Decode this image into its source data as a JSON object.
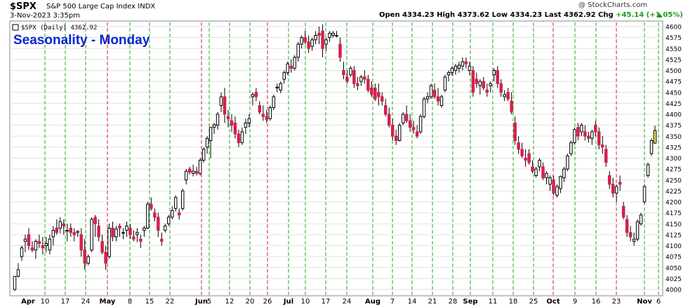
{
  "header": {
    "symbol": "$SPX",
    "description": "S&P 500 Large Cap Index INDX",
    "date": "3-Nov-2023 3:35pm",
    "watermark": "@ StockCharts.com",
    "quote": {
      "open_label": "Open",
      "open": "4334.23",
      "high_label": "High",
      "high": "4373.62",
      "low_label": "Low",
      "low": "4334.23",
      "last_label": "Last",
      "last": "4362.92",
      "chg_label": "Chg",
      "chg": "+45.14 (+1.05%)"
    }
  },
  "chart_data": {
    "type": "candlestick",
    "title": "Seasonality - Monday",
    "legend": "$SPX (Daily) 4362.92",
    "ylim": [
      3990,
      4615
    ],
    "y_ticks": [
      4000,
      4025,
      4050,
      4075,
      4100,
      4125,
      4150,
      4175,
      4200,
      4225,
      4250,
      4275,
      4300,
      4325,
      4350,
      4375,
      4400,
      4425,
      4450,
      4475,
      4500,
      4525,
      4550,
      4575,
      4600
    ],
    "x_ticks": [
      "Apr",
      "10",
      "17",
      "24",
      "May",
      "8",
      "15",
      "22",
      "Jun",
      "5",
      "12",
      "20",
      "26",
      "Jul",
      "10",
      "17",
      "24",
      "Aug",
      "7",
      "14",
      "21",
      "28",
      "Sep",
      "11",
      "18",
      "25",
      "Oct",
      "9",
      "16",
      "23",
      "Nov",
      "6"
    ],
    "month_ticks": [
      "Apr",
      "May",
      "Jun",
      "Jul",
      "Aug",
      "Sep",
      "Oct",
      "Nov"
    ],
    "monday_lines": [
      {
        "label": "10",
        "color": "green"
      },
      {
        "label": "17",
        "color": "green"
      },
      {
        "label": "24",
        "color": "green"
      },
      {
        "label": "May",
        "color": "red"
      },
      {
        "label": "8",
        "color": "green"
      },
      {
        "label": "15",
        "color": "green"
      },
      {
        "label": "22",
        "color": "green"
      },
      {
        "label": "Jun",
        "color": "red"
      },
      {
        "label": "5",
        "color": "green"
      },
      {
        "label": "12",
        "color": "green"
      },
      {
        "label": "20",
        "color": "green"
      },
      {
        "label": "26",
        "color": "red"
      },
      {
        "label": "Jul",
        "color": "green"
      },
      {
        "label": "10",
        "color": "green"
      },
      {
        "label": "17",
        "color": "green"
      },
      {
        "label": "24",
        "color": "green"
      },
      {
        "label": "Aug",
        "color": "green"
      },
      {
        "label": "7",
        "color": "green"
      },
      {
        "label": "14",
        "color": "green"
      },
      {
        "label": "21",
        "color": "green"
      },
      {
        "label": "28",
        "color": "green"
      },
      {
        "label": "Sep",
        "color": "green"
      },
      {
        "label": "11",
        "color": "green"
      },
      {
        "label": "18",
        "color": "green"
      },
      {
        "label": "25",
        "color": "green"
      },
      {
        "label": "Oct",
        "color": "red"
      },
      {
        "label": "9",
        "color": "green"
      },
      {
        "label": "16",
        "color": "green"
      },
      {
        "label": "23",
        "color": "red"
      },
      {
        "label": "Nov",
        "color": "green"
      },
      {
        "label": "6",
        "color": "green"
      }
    ],
    "colors": {
      "up": "#ffffff",
      "down": "#d6204b",
      "flat": "#000000",
      "last": "#f4ee4f",
      "monday_up": "#22aa22",
      "monday_down": "#cc2222",
      "title": "#0b24d6"
    },
    "ohlc": [
      [
        4000,
        4030,
        3997,
        4030
      ],
      [
        4030,
        4060,
        4028,
        4045
      ],
      [
        4075,
        4100,
        4065,
        4095
      ],
      [
        4110,
        4125,
        4085,
        4115
      ],
      [
        4125,
        4140,
        4090,
        4100
      ],
      [
        4095,
        4110,
        4085,
        4090
      ],
      [
        4090,
        4115,
        4070,
        4110
      ],
      [
        4110,
        4125,
        4095,
        4105
      ],
      [
        4100,
        4120,
        4080,
        4095
      ],
      [
        4100,
        4120,
        4085,
        4105
      ],
      [
        4090,
        4125,
        4080,
        4115
      ],
      [
        4120,
        4145,
        4100,
        4135
      ],
      [
        4140,
        4160,
        4125,
        4130
      ],
      [
        4140,
        4165,
        4128,
        4155
      ],
      [
        4150,
        4160,
        4125,
        4145
      ],
      [
        4135,
        4150,
        4110,
        4135
      ],
      [
        4140,
        4150,
        4120,
        4130
      ],
      [
        4130,
        4140,
        4110,
        4125
      ],
      [
        4130,
        4135,
        4120,
        4133
      ],
      [
        4125,
        4140,
        4075,
        4090
      ],
      [
        4090,
        4115,
        4045,
        4060
      ],
      [
        4060,
        4080,
        4055,
        4075
      ],
      [
        4090,
        4165,
        4085,
        4160
      ],
      [
        4165,
        4170,
        4120,
        4150
      ],
      [
        4145,
        4160,
        4110,
        4120
      ],
      [
        4110,
        4125,
        4080,
        4085
      ],
      [
        4085,
        4100,
        4045,
        4060
      ],
      [
        4075,
        4150,
        4070,
        4140
      ],
      [
        4140,
        4155,
        4110,
        4120
      ],
      [
        4120,
        4145,
        4110,
        4138
      ],
      [
        4145,
        4150,
        4120,
        4140
      ],
      [
        4130,
        4140,
        4115,
        4130
      ],
      [
        4135,
        4155,
        4120,
        4145
      ],
      [
        4140,
        4150,
        4115,
        4125
      ],
      [
        4120,
        4135,
        4110,
        4115
      ],
      [
        4125,
        4140,
        4108,
        4130
      ],
      [
        4115,
        4125,
        4095,
        4110
      ],
      [
        4135,
        4145,
        4120,
        4140
      ],
      [
        4140,
        4200,
        4138,
        4195
      ],
      [
        4195,
        4210,
        4180,
        4185
      ],
      [
        4175,
        4185,
        4155,
        4165
      ],
      [
        4165,
        4175,
        4120,
        4135
      ],
      [
        4115,
        4130,
        4100,
        4110
      ],
      [
        4135,
        4150,
        4130,
        4145
      ],
      [
        4150,
        4170,
        4145,
        4165
      ],
      [
        4165,
        4190,
        4160,
        4180
      ],
      [
        4185,
        4215,
        4178,
        4210
      ],
      [
        4175,
        4185,
        4160,
        4170
      ],
      [
        4185,
        4230,
        4180,
        4225
      ],
      [
        4250,
        4275,
        4240,
        4270
      ],
      [
        4275,
        4280,
        4262,
        4268
      ],
      [
        4265,
        4285,
        4258,
        4270
      ],
      [
        4270,
        4280,
        4260,
        4265
      ],
      [
        4265,
        4300,
        4260,
        4295
      ],
      [
        4295,
        4325,
        4290,
        4320
      ],
      [
        4325,
        4350,
        4310,
        4345
      ],
      [
        4340,
        4365,
        4300,
        4370
      ],
      [
        4370,
        4380,
        4355,
        4376
      ],
      [
        4375,
        4405,
        4365,
        4400
      ],
      [
        4420,
        4450,
        4405,
        4440
      ],
      [
        4440,
        4460,
        4380,
        4400
      ],
      [
        4395,
        4410,
        4370,
        4390
      ],
      [
        4385,
        4400,
        4360,
        4375
      ],
      [
        4380,
        4395,
        4345,
        4355
      ],
      [
        4355,
        4365,
        4325,
        4335
      ],
      [
        4335,
        4370,
        4330,
        4360
      ],
      [
        4370,
        4390,
        4355,
        4380
      ],
      [
        4380,
        4400,
        4370,
        4390
      ],
      [
        4440,
        4450,
        4420,
        4445
      ],
      [
        4450,
        4460,
        4430,
        4440
      ],
      [
        4420,
        4430,
        4400,
        4405
      ],
      [
        4400,
        4420,
        4385,
        4395
      ],
      [
        4395,
        4410,
        4380,
        4388
      ],
      [
        4390,
        4420,
        4385,
        4415
      ],
      [
        4415,
        4445,
        4410,
        4440
      ],
      [
        4460,
        4470,
        4450,
        4462
      ],
      [
        4455,
        4475,
        4448,
        4470
      ],
      [
        4480,
        4500,
        4470,
        4495
      ],
      [
        4495,
        4520,
        4490,
        4515
      ],
      [
        4510,
        4525,
        4495,
        4505
      ],
      [
        4505,
        4535,
        4500,
        4530
      ],
      [
        4530,
        4565,
        4520,
        4560
      ],
      [
        4560,
        4580,
        4550,
        4575
      ],
      [
        4575,
        4590,
        4560,
        4565
      ],
      [
        4565,
        4580,
        4540,
        4550
      ],
      [
        4555,
        4575,
        4545,
        4570
      ],
      [
        4570,
        4590,
        4560,
        4580
      ],
      [
        4585,
        4600,
        4560,
        4580
      ],
      [
        4590,
        4605,
        4530,
        4550
      ],
      [
        4560,
        4575,
        4545,
        4570
      ],
      [
        4575,
        4590,
        4565,
        4585
      ],
      [
        4580,
        4590,
        4575,
        4585
      ],
      [
        4580,
        4590,
        4575,
        4580
      ],
      [
        4560,
        4575,
        4520,
        4530
      ],
      [
        4500,
        4520,
        4480,
        4490
      ],
      [
        4485,
        4500,
        4470,
        4475
      ],
      [
        4490,
        4510,
        4485,
        4505
      ],
      [
        4500,
        4510,
        4460,
        4470
      ],
      [
        4470,
        4485,
        4455,
        4465
      ],
      [
        4475,
        4490,
        4465,
        4485
      ],
      [
        4485,
        4500,
        4470,
        4480
      ],
      [
        4480,
        4490,
        4450,
        4455
      ],
      [
        4460,
        4475,
        4440,
        4445
      ],
      [
        4460,
        4470,
        4430,
        4435
      ],
      [
        4450,
        4470,
        4420,
        4440
      ],
      [
        4440,
        4450,
        4420,
        4430
      ],
      [
        4420,
        4435,
        4395,
        4400
      ],
      [
        4400,
        4415,
        4370,
        4375
      ],
      [
        4375,
        4390,
        4340,
        4350
      ],
      [
        4350,
        4365,
        4330,
        4340
      ],
      [
        4340,
        4380,
        4338,
        4375
      ],
      [
        4380,
        4405,
        4375,
        4400
      ],
      [
        4400,
        4420,
        4380,
        4385
      ],
      [
        4385,
        4400,
        4360,
        4370
      ],
      [
        4370,
        4385,
        4355,
        4365
      ],
      [
        4360,
        4375,
        4345,
        4350
      ],
      [
        4360,
        4400,
        4355,
        4395
      ],
      [
        4395,
        4440,
        4390,
        4435
      ],
      [
        4435,
        4450,
        4425,
        4440
      ],
      [
        4440,
        4470,
        4435,
        4465
      ],
      [
        4455,
        4470,
        4435,
        4440
      ],
      [
        4440,
        4460,
        4420,
        4430
      ],
      [
        4420,
        4445,
        4415,
        4440
      ],
      [
        4455,
        4490,
        4450,
        4485
      ],
      [
        4490,
        4500,
        4475,
        4495
      ],
      [
        4495,
        4510,
        4488,
        4505
      ],
      [
        4500,
        4515,
        4490,
        4510
      ],
      [
        4505,
        4520,
        4495,
        4512
      ],
      [
        4510,
        4530,
        4500,
        4520
      ],
      [
        4520,
        4530,
        4505,
        4515
      ],
      [
        4500,
        4520,
        4490,
        4510
      ],
      [
        4500,
        4510,
        4440,
        4450
      ],
      [
        4480,
        4495,
        4460,
        4470
      ],
      [
        4465,
        4480,
        4445,
        4475
      ],
      [
        4475,
        4485,
        4455,
        4460
      ],
      [
        4455,
        4470,
        4440,
        4450
      ],
      [
        4465,
        4475,
        4450,
        4470
      ],
      [
        4490,
        4505,
        4475,
        4500
      ],
      [
        4500,
        4510,
        4460,
        4470
      ],
      [
        4470,
        4480,
        4440,
        4450
      ],
      [
        4440,
        4455,
        4430,
        4445
      ],
      [
        4450,
        4460,
        4430,
        4435
      ],
      [
        4430,
        4450,
        4400,
        4405
      ],
      [
        4380,
        4395,
        4330,
        4340
      ],
      [
        4335,
        4350,
        4310,
        4320
      ],
      [
        4320,
        4335,
        4300,
        4305
      ],
      [
        4300,
        4320,
        4280,
        4295
      ],
      [
        4310,
        4320,
        4285,
        4290
      ],
      [
        4280,
        4295,
        4265,
        4270
      ],
      [
        4260,
        4280,
        4255,
        4275
      ],
      [
        4280,
        4300,
        4270,
        4295
      ],
      [
        4280,
        4290,
        4250,
        4255
      ],
      [
        4255,
        4270,
        4240,
        4265
      ],
      [
        4240,
        4260,
        4225,
        4255
      ],
      [
        4250,
        4260,
        4215,
        4220
      ],
      [
        4215,
        4240,
        4210,
        4235
      ],
      [
        4230,
        4260,
        4220,
        4258
      ],
      [
        4255,
        4280,
        4245,
        4275
      ],
      [
        4275,
        4310,
        4270,
        4305
      ],
      [
        4310,
        4340,
        4305,
        4335
      ],
      [
        4335,
        4370,
        4330,
        4365
      ],
      [
        4370,
        4380,
        4340,
        4350
      ],
      [
        4360,
        4380,
        4350,
        4375
      ],
      [
        4360,
        4375,
        4340,
        4350
      ],
      [
        4350,
        4360,
        4335,
        4345
      ],
      [
        4345,
        4365,
        4330,
        4360
      ],
      [
        4375,
        4385,
        4350,
        4360
      ],
      [
        4360,
        4370,
        4320,
        4330
      ],
      [
        4330,
        4350,
        4310,
        4325
      ],
      [
        4320,
        4330,
        4280,
        4290
      ],
      [
        4260,
        4270,
        4230,
        4240
      ],
      [
        4240,
        4255,
        4210,
        4220
      ],
      [
        4220,
        4240,
        4200,
        4235
      ],
      [
        4245,
        4260,
        4225,
        4240
      ],
      [
        4190,
        4200,
        4160,
        4165
      ],
      [
        4160,
        4170,
        4120,
        4130
      ],
      [
        4130,
        4145,
        4110,
        4120
      ],
      [
        4110,
        4130,
        4100,
        4115
      ],
      [
        4115,
        4160,
        4110,
        4155
      ],
      [
        4150,
        4175,
        4145,
        4170
      ],
      [
        4200,
        4240,
        4195,
        4235
      ],
      [
        4260,
        4290,
        4255,
        4285
      ],
      [
        4310,
        4345,
        4305,
        4340
      ],
      [
        4334,
        4374,
        4334,
        4363
      ]
    ]
  }
}
